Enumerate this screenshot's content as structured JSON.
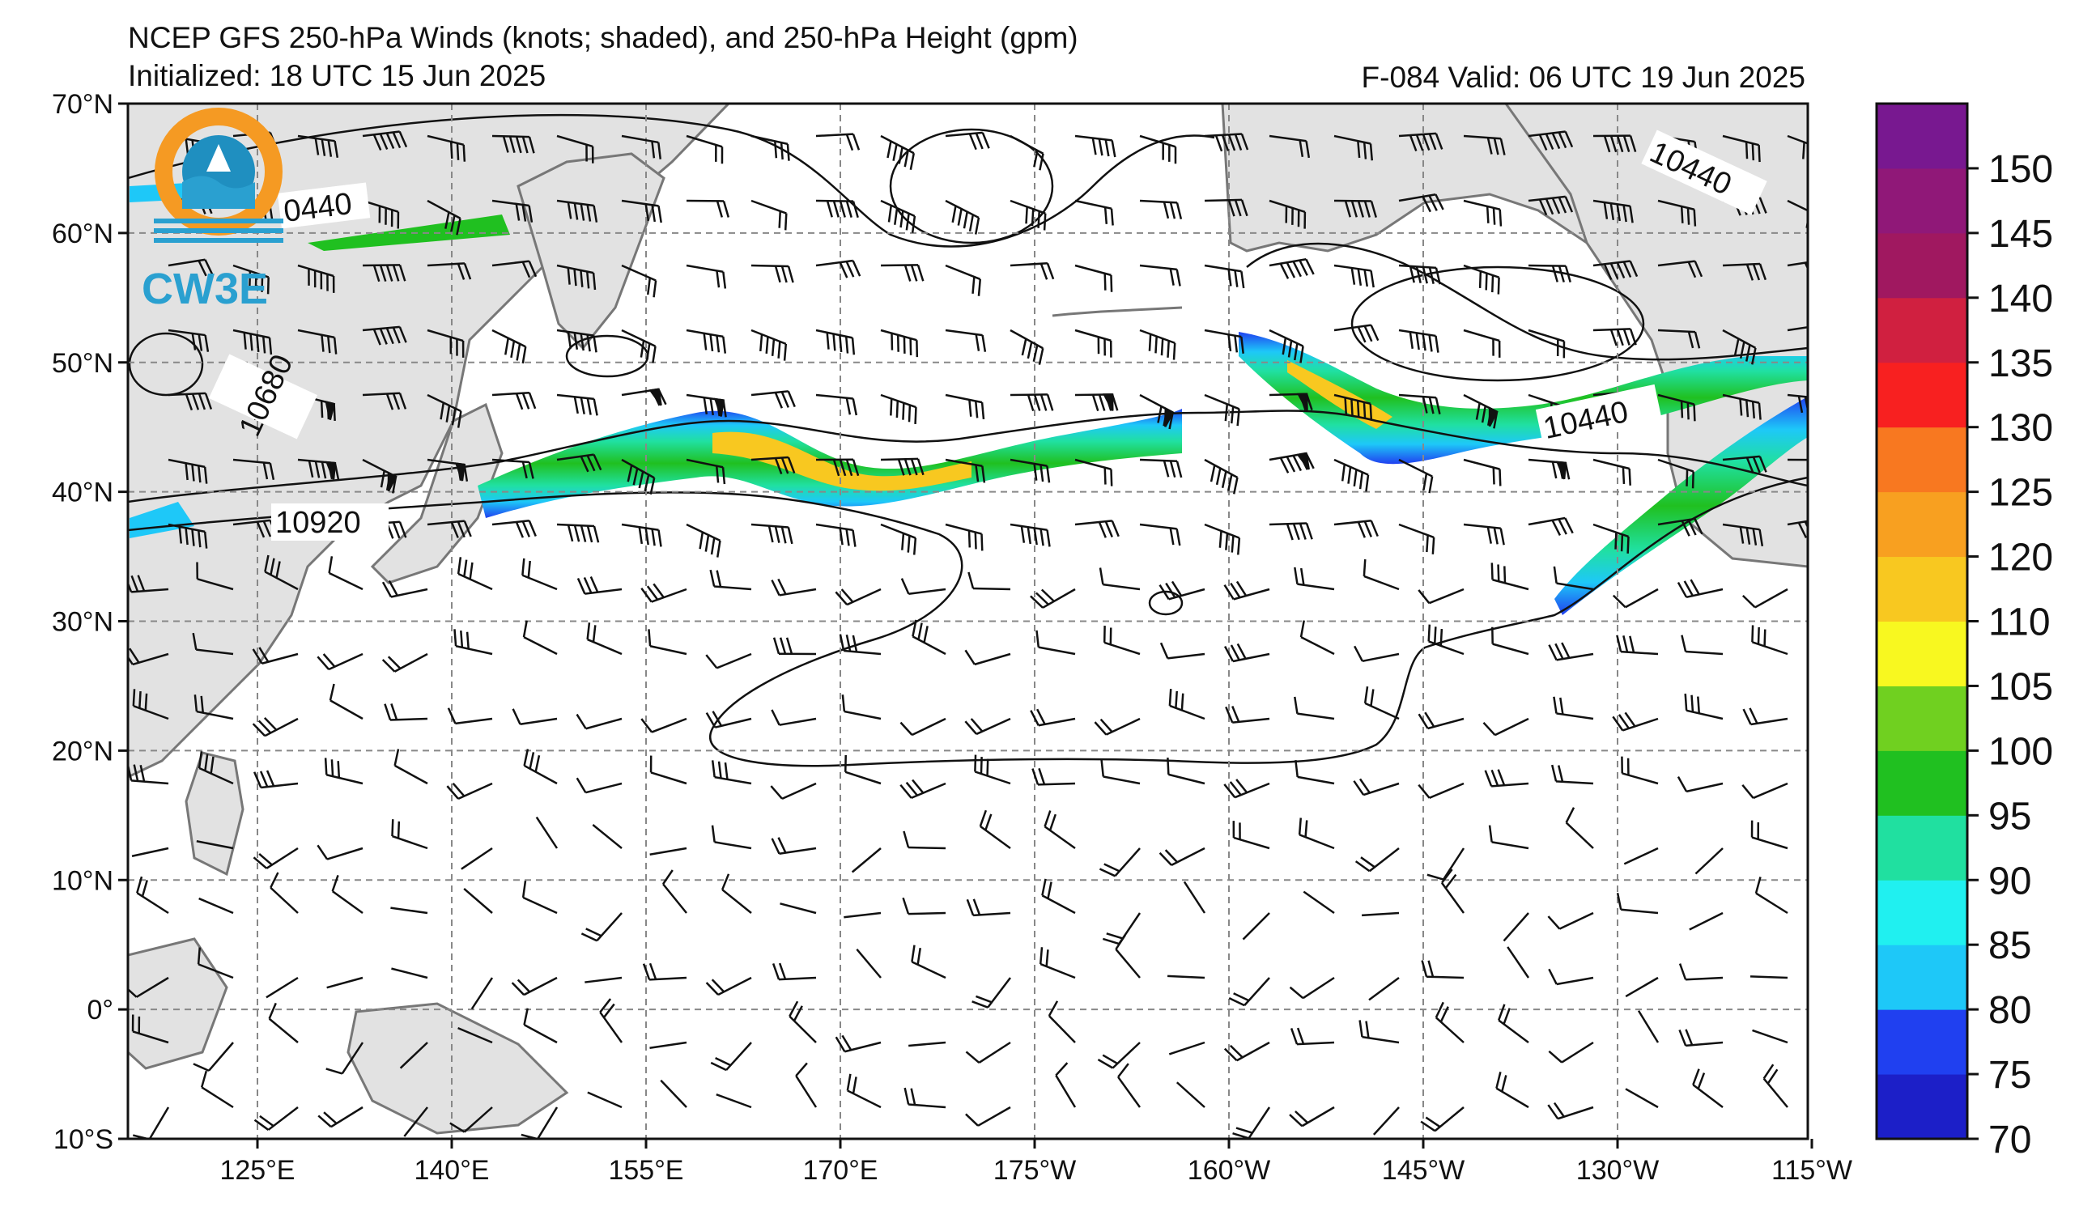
{
  "title_line1": "NCEP GFS 250-hPa Winds (knots; shaded), and 250-hPa Height (gpm)",
  "title_line2": "Initialized: 18 UTC 15 Jun 2025",
  "title_right": "F-084  Valid: 06 UTC 19 Jun 2025",
  "logo_text": "CW3E",
  "lat_labels": [
    "70°N",
    "60°N",
    "50°N",
    "40°N",
    "30°N",
    "20°N",
    "10°N",
    "0°",
    "10°S"
  ],
  "lon_labels": [
    "125°E",
    "140°E",
    "155°E",
    "170°E",
    "175°W",
    "160°W",
    "145°W",
    "130°W",
    "115°W"
  ],
  "contour_labels": [
    "0440",
    "10680",
    "10920",
    "10440",
    "10440"
  ],
  "colorbar": {
    "labels": [
      "70",
      "75",
      "80",
      "85",
      "90",
      "95",
      "100",
      "105",
      "110",
      "120",
      "125",
      "130",
      "135",
      "140",
      "145",
      "150"
    ],
    "colors": [
      "#1c1fc8",
      "#2040f0",
      "#1ec8f8",
      "#20f0f0",
      "#20e0a0",
      "#20c020",
      "#70d020",
      "#f8f820",
      "#f8c820",
      "#f8a020",
      "#f87820",
      "#f82020",
      "#d02040",
      "#a01860",
      "#901878",
      "#781890"
    ]
  },
  "chart_data": {
    "type": "map",
    "variable": "250-hPa wind speed (knots; shaded) and 250-hPa geopotential height (gpm; contours)",
    "lat_range": [
      -10,
      70
    ],
    "lon_range_east": [
      115,
      245
    ],
    "contour_values": [
      10440,
      10680,
      10920
    ],
    "shading_levels_kt": [
      70,
      75,
      80,
      85,
      90,
      95,
      100,
      105,
      110,
      120,
      125,
      130,
      135,
      140,
      145,
      150
    ]
  }
}
